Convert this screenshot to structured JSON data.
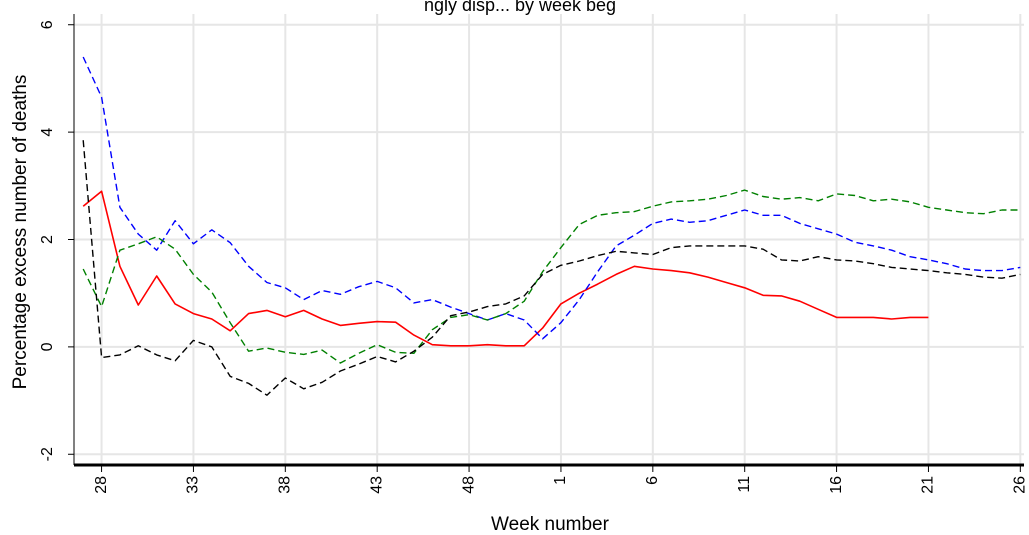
{
  "chart_data": {
    "type": "line",
    "title": "ngly disp... by week beg",
    "xlabel": "Week number",
    "ylabel": "Percentage excess number of deaths",
    "ylim": [
      -2.2,
      6.2
    ],
    "yticks": [
      -2,
      0,
      2,
      4,
      6
    ],
    "ytick_labels": [
      "-2",
      "0",
      "2",
      "4",
      "6"
    ],
    "xticks": [
      28,
      33,
      38,
      43,
      48,
      53,
      58,
      63,
      68,
      73,
      78
    ],
    "xtick_labels": [
      "28",
      "33",
      "38",
      "43",
      "48",
      "1",
      "6",
      "11",
      "16",
      "21",
      "26"
    ],
    "grid": true,
    "colors": {
      "red": "#ff0000",
      "blue": "#0000ff",
      "green": "#008000",
      "black": "#000000",
      "grid": "#e6e6e6",
      "bg": "#ffffff"
    },
    "series": [
      {
        "color": "red",
        "dashed": false,
        "points": [
          [
            27,
            2.62
          ],
          [
            28,
            2.9
          ],
          [
            29,
            1.5
          ],
          [
            30,
            0.78
          ],
          [
            31,
            1.32
          ],
          [
            32,
            0.8
          ],
          [
            33,
            0.62
          ],
          [
            34,
            0.52
          ],
          [
            35,
            0.3
          ],
          [
            36,
            0.62
          ],
          [
            37,
            0.68
          ],
          [
            38,
            0.56
          ],
          [
            39,
            0.68
          ],
          [
            40,
            0.52
          ],
          [
            41,
            0.4
          ],
          [
            42,
            0.44
          ],
          [
            43,
            0.47
          ],
          [
            44,
            0.46
          ],
          [
            45,
            0.22
          ],
          [
            46,
            0.04
          ],
          [
            47,
            0.02
          ],
          [
            48,
            0.02
          ],
          [
            49,
            0.04
          ],
          [
            50,
            0.02
          ],
          [
            51,
            0.02
          ],
          [
            52,
            0.35
          ],
          [
            53,
            0.8
          ],
          [
            54,
            1.0
          ],
          [
            55,
            1.17
          ],
          [
            56,
            1.35
          ],
          [
            57,
            1.5
          ],
          [
            58,
            1.45
          ],
          [
            59,
            1.42
          ],
          [
            60,
            1.38
          ],
          [
            61,
            1.3
          ],
          [
            62,
            1.2
          ],
          [
            63,
            1.1
          ],
          [
            64,
            0.96
          ],
          [
            65,
            0.95
          ],
          [
            66,
            0.85
          ],
          [
            67,
            0.7
          ],
          [
            68,
            0.55
          ],
          [
            69,
            0.55
          ],
          [
            70,
            0.55
          ],
          [
            71,
            0.52
          ],
          [
            72,
            0.55
          ],
          [
            73,
            0.55
          ]
        ]
      },
      {
        "color": "blue",
        "dashed": true,
        "points": [
          [
            27,
            5.4
          ],
          [
            28,
            4.65
          ],
          [
            29,
            2.6
          ],
          [
            30,
            2.1
          ],
          [
            31,
            1.8
          ],
          [
            32,
            2.35
          ],
          [
            33,
            1.92
          ],
          [
            34,
            2.18
          ],
          [
            35,
            1.94
          ],
          [
            36,
            1.5
          ],
          [
            37,
            1.2
          ],
          [
            38,
            1.1
          ],
          [
            39,
            0.88
          ],
          [
            40,
            1.05
          ],
          [
            41,
            0.98
          ],
          [
            42,
            1.12
          ],
          [
            43,
            1.22
          ],
          [
            44,
            1.1
          ],
          [
            45,
            0.82
          ],
          [
            46,
            0.88
          ],
          [
            47,
            0.74
          ],
          [
            48,
            0.62
          ],
          [
            49,
            0.5
          ],
          [
            50,
            0.62
          ],
          [
            51,
            0.5
          ],
          [
            52,
            0.15
          ],
          [
            53,
            0.45
          ],
          [
            54,
            0.88
          ],
          [
            55,
            1.4
          ],
          [
            56,
            1.88
          ],
          [
            57,
            2.08
          ],
          [
            58,
            2.3
          ],
          [
            59,
            2.38
          ],
          [
            60,
            2.32
          ],
          [
            61,
            2.35
          ],
          [
            62,
            2.45
          ],
          [
            63,
            2.55
          ],
          [
            64,
            2.45
          ],
          [
            65,
            2.45
          ],
          [
            66,
            2.3
          ],
          [
            67,
            2.2
          ],
          [
            68,
            2.1
          ],
          [
            69,
            1.95
          ],
          [
            70,
            1.88
          ],
          [
            71,
            1.8
          ],
          [
            72,
            1.68
          ],
          [
            73,
            1.62
          ],
          [
            74,
            1.55
          ],
          [
            75,
            1.45
          ],
          [
            76,
            1.42
          ],
          [
            77,
            1.42
          ],
          [
            78,
            1.48
          ]
        ]
      },
      {
        "color": "green",
        "dashed": true,
        "points": [
          [
            27,
            1.45
          ],
          [
            28,
            0.75
          ],
          [
            29,
            1.8
          ],
          [
            30,
            1.92
          ],
          [
            31,
            2.05
          ],
          [
            32,
            1.82
          ],
          [
            33,
            1.35
          ],
          [
            34,
            1.02
          ],
          [
            35,
            0.45
          ],
          [
            36,
            -0.08
          ],
          [
            37,
            -0.02
          ],
          [
            38,
            -0.1
          ],
          [
            39,
            -0.14
          ],
          [
            40,
            -0.06
          ],
          [
            41,
            -0.3
          ],
          [
            42,
            -0.12
          ],
          [
            43,
            0.04
          ],
          [
            44,
            -0.1
          ],
          [
            45,
            -0.12
          ],
          [
            46,
            0.32
          ],
          [
            47,
            0.55
          ],
          [
            48,
            0.6
          ],
          [
            49,
            0.5
          ],
          [
            50,
            0.62
          ],
          [
            51,
            0.85
          ],
          [
            52,
            1.4
          ],
          [
            53,
            1.85
          ],
          [
            54,
            2.28
          ],
          [
            55,
            2.45
          ],
          [
            56,
            2.5
          ],
          [
            57,
            2.52
          ],
          [
            58,
            2.62
          ],
          [
            59,
            2.7
          ],
          [
            60,
            2.72
          ],
          [
            61,
            2.75
          ],
          [
            62,
            2.82
          ],
          [
            63,
            2.92
          ],
          [
            64,
            2.8
          ],
          [
            65,
            2.75
          ],
          [
            66,
            2.78
          ],
          [
            67,
            2.72
          ],
          [
            68,
            2.85
          ],
          [
            69,
            2.82
          ],
          [
            70,
            2.72
          ],
          [
            71,
            2.75
          ],
          [
            72,
            2.7
          ],
          [
            73,
            2.6
          ],
          [
            74,
            2.55
          ],
          [
            75,
            2.5
          ],
          [
            76,
            2.48
          ],
          [
            77,
            2.55
          ],
          [
            78,
            2.55
          ]
        ]
      },
      {
        "color": "black",
        "dashed": true,
        "points": [
          [
            27,
            3.85
          ],
          [
            28,
            -0.2
          ],
          [
            29,
            -0.15
          ],
          [
            30,
            0.02
          ],
          [
            31,
            -0.15
          ],
          [
            32,
            -0.26
          ],
          [
            33,
            0.12
          ],
          [
            34,
            0.0
          ],
          [
            35,
            -0.55
          ],
          [
            36,
            -0.68
          ],
          [
            37,
            -0.9
          ],
          [
            38,
            -0.58
          ],
          [
            39,
            -0.78
          ],
          [
            40,
            -0.66
          ],
          [
            41,
            -0.45
          ],
          [
            42,
            -0.32
          ],
          [
            43,
            -0.18
          ],
          [
            44,
            -0.28
          ],
          [
            45,
            -0.08
          ],
          [
            46,
            0.18
          ],
          [
            47,
            0.58
          ],
          [
            48,
            0.65
          ],
          [
            49,
            0.75
          ],
          [
            50,
            0.8
          ],
          [
            51,
            0.95
          ],
          [
            52,
            1.35
          ],
          [
            53,
            1.52
          ],
          [
            54,
            1.6
          ],
          [
            55,
            1.7
          ],
          [
            56,
            1.78
          ],
          [
            57,
            1.75
          ],
          [
            58,
            1.72
          ],
          [
            59,
            1.85
          ],
          [
            60,
            1.88
          ],
          [
            61,
            1.88
          ],
          [
            62,
            1.88
          ],
          [
            63,
            1.88
          ],
          [
            64,
            1.82
          ],
          [
            65,
            1.62
          ],
          [
            66,
            1.6
          ],
          [
            67,
            1.68
          ],
          [
            68,
            1.62
          ],
          [
            69,
            1.6
          ],
          [
            70,
            1.55
          ],
          [
            71,
            1.48
          ],
          [
            72,
            1.45
          ],
          [
            73,
            1.42
          ],
          [
            74,
            1.38
          ],
          [
            75,
            1.35
          ],
          [
            76,
            1.3
          ],
          [
            77,
            1.28
          ],
          [
            78,
            1.35
          ]
        ]
      }
    ]
  }
}
